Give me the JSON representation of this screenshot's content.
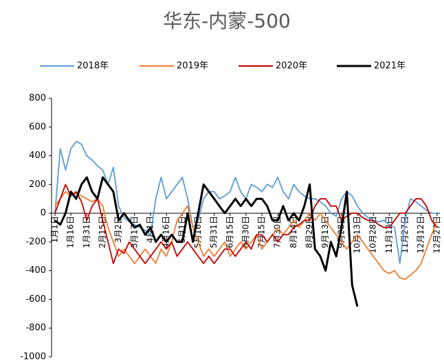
{
  "chart_data": {
    "type": "line",
    "title": "华东-内蒙-500",
    "categories": [
      "1月1日",
      null,
      null,
      "1月16日",
      null,
      null,
      "1月31日",
      null,
      null,
      "2月15日",
      null,
      null,
      "3月2日",
      null,
      null,
      "3月17日",
      null,
      null,
      "4月1日",
      null,
      null,
      "4月16日",
      null,
      null,
      "5月1日",
      null,
      null,
      "5月16日",
      null,
      null,
      "5月31日",
      null,
      null,
      "6月15日",
      null,
      null,
      "6月30日",
      null,
      null,
      "7月15日",
      null,
      null,
      "7月30日",
      null,
      null,
      "8月14日",
      null,
      null,
      "8月29日",
      null,
      null,
      "9月13日",
      null,
      null,
      "9月28日",
      null,
      null,
      "10月13日",
      null,
      null,
      "10月28日",
      null,
      null,
      "11月12日",
      null,
      null,
      "11月27日",
      null,
      null,
      "12月12日",
      null,
      null,
      "12月27日"
    ],
    "series": [
      {
        "name": "2018年",
        "color": "#5b9bd5",
        "values": [
          0,
          450,
          300,
          450,
          500,
          480,
          400,
          370,
          330,
          300,
          200,
          320,
          50,
          -30,
          -60,
          -80,
          -100,
          -120,
          -150,
          100,
          250,
          100,
          150,
          200,
          250,
          100,
          -100,
          -50,
          100,
          150,
          150,
          100,
          120,
          150,
          250,
          150,
          100,
          200,
          180,
          150,
          200,
          180,
          250,
          150,
          100,
          200,
          150,
          120,
          100,
          100,
          80,
          50,
          0,
          -20,
          100,
          150,
          120,
          50,
          0,
          -30,
          -50,
          -60,
          -50,
          -80,
          -100,
          -350,
          -50,
          100,
          80,
          50,
          20,
          0,
          0
        ]
      },
      {
        "name": "2019年",
        "color": "#ed7d31",
        "values": [
          50,
          100,
          150,
          120,
          140,
          120,
          100,
          80,
          100,
          50,
          -100,
          -200,
          -300,
          -250,
          -300,
          -350,
          -300,
          -250,
          -300,
          -350,
          -250,
          -300,
          -200,
          -50,
          0,
          50,
          -100,
          -200,
          -300,
          -250,
          -300,
          -250,
          -200,
          -300,
          -250,
          -200,
          -250,
          -200,
          -150,
          -250,
          -200,
          -150,
          -100,
          -150,
          -100,
          -50,
          -100,
          -50,
          0,
          -50,
          0,
          -50,
          -100,
          -150,
          -200,
          -250,
          -200,
          -150,
          -200,
          -250,
          -300,
          -350,
          -400,
          -420,
          -400,
          -450,
          -460,
          -430,
          -400,
          -350,
          -250,
          -150,
          -50
        ]
      },
      {
        "name": "2020年",
        "color": "#c00000",
        "values": [
          0,
          100,
          200,
          120,
          150,
          80,
          -50,
          50,
          100,
          -50,
          -200,
          -350,
          -250,
          -280,
          -200,
          -250,
          -300,
          -350,
          -300,
          -250,
          -200,
          -250,
          -200,
          -300,
          -250,
          -200,
          -250,
          -300,
          -350,
          -300,
          -350,
          -300,
          -250,
          -250,
          -300,
          -250,
          -200,
          -250,
          -150,
          -150,
          -200,
          -150,
          -200,
          -150,
          -150,
          -100,
          -80,
          -50,
          -50,
          50,
          100,
          100,
          50,
          50,
          -50,
          -20,
          0,
          0,
          -30,
          -50,
          -50,
          -80,
          -100,
          -100,
          -50,
          0,
          0,
          50,
          100,
          100,
          50,
          -50,
          -100
        ]
      },
      {
        "name": "2021年",
        "color": "#000000",
        "values": [
          -50,
          -80,
          0,
          150,
          100,
          200,
          250,
          150,
          100,
          250,
          200,
          150,
          -50,
          0,
          -50,
          -100,
          -80,
          -150,
          -100,
          -200,
          -150,
          -200,
          -150,
          -200,
          -200,
          0,
          -200,
          0,
          200,
          150,
          100,
          50,
          0,
          50,
          100,
          50,
          100,
          50,
          100,
          100,
          50,
          -50,
          -50,
          50,
          -50,
          0,
          -50,
          50,
          200,
          -250,
          -300,
          -400,
          -200,
          -300,
          -100,
          150,
          -500,
          -650,
          null,
          null,
          null,
          null,
          null,
          null,
          null,
          null,
          null,
          null,
          null,
          null,
          null,
          null,
          null
        ]
      }
    ],
    "ylim": [
      -1000,
      800
    ],
    "yticks": [
      -1000,
      -800,
      -600,
      -400,
      -200,
      0,
      200,
      400,
      600,
      800
    ]
  }
}
